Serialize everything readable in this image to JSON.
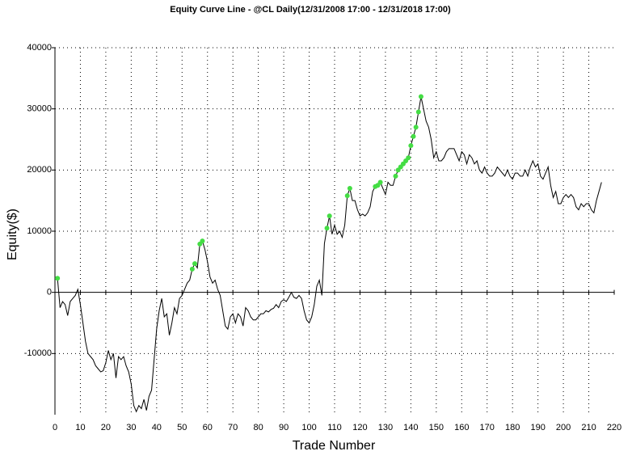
{
  "chart_data": {
    "type": "line",
    "title": "Equity Curve Line - @CL Daily(12/31/2008 17:00 - 12/31/2018 17:00)",
    "x_label": "Trade Number",
    "y_label": "Equity($)",
    "xlim": [
      0,
      220
    ],
    "xticks": [
      0,
      10,
      20,
      30,
      40,
      50,
      60,
      70,
      80,
      90,
      100,
      110,
      120,
      130,
      140,
      150,
      160,
      170,
      180,
      190,
      200,
      210,
      220
    ],
    "ylim": [
      -20000,
      40000
    ],
    "yticks": [
      -10000,
      0,
      10000,
      20000,
      30000,
      40000
    ],
    "grid": true,
    "series": [
      {
        "color": "#000000",
        "x": [
          1,
          2,
          3,
          4,
          5,
          6,
          7,
          8,
          9,
          10,
          11,
          12,
          13,
          14,
          15,
          16,
          17,
          18,
          19,
          20,
          21,
          22,
          23,
          24,
          25,
          26,
          27,
          28,
          29,
          30,
          31,
          32,
          33,
          34,
          35,
          36,
          37,
          38,
          39,
          40,
          41,
          42,
          43,
          44,
          45,
          46,
          47,
          48,
          49,
          50,
          51,
          52,
          53,
          54,
          55,
          56,
          57,
          58,
          59,
          60,
          61,
          62,
          63,
          64,
          65,
          66,
          67,
          68,
          69,
          70,
          71,
          72,
          73,
          74,
          75,
          76,
          77,
          78,
          79,
          80,
          81,
          82,
          83,
          84,
          85,
          86,
          87,
          88,
          89,
          90,
          91,
          92,
          93,
          94,
          95,
          96,
          97,
          98,
          99,
          100,
          101,
          102,
          103,
          104,
          105,
          106,
          107,
          108,
          109,
          110,
          111,
          112,
          113,
          114,
          115,
          116,
          117,
          118,
          119,
          120,
          121,
          122,
          123,
          124,
          125,
          126,
          127,
          128,
          129,
          130,
          131,
          132,
          133,
          134,
          135,
          136,
          137,
          138,
          139,
          140,
          141,
          142,
          143,
          144,
          145,
          146,
          147,
          148,
          149,
          150,
          151,
          152,
          153,
          154,
          155,
          156,
          157,
          158,
          159,
          160,
          161,
          162,
          163,
          164,
          165,
          166,
          167,
          168,
          169,
          170,
          171,
          172,
          173,
          174,
          175,
          176,
          177,
          178,
          179,
          180,
          181,
          182,
          183,
          184,
          185,
          186,
          187,
          188,
          189,
          190,
          191,
          192,
          193,
          194,
          195,
          196,
          197,
          198,
          199,
          200,
          201,
          202,
          203,
          204,
          205,
          206,
          207,
          208,
          209,
          210,
          211,
          212,
          213,
          214,
          215
        ],
        "values": [
          2300,
          -2500,
          -1500,
          -2000,
          -3800,
          -1500,
          -1000,
          -500,
          500,
          -2000,
          -5000,
          -8000,
          -10000,
          -10500,
          -11000,
          -12000,
          -12500,
          -13000,
          -12800,
          -11500,
          -9500,
          -11000,
          -10000,
          -14000,
          -10500,
          -11000,
          -10500,
          -12000,
          -13000,
          -15000,
          -18500,
          -19500,
          -18500,
          -19000,
          -17500,
          -19300,
          -17000,
          -16000,
          -11000,
          -6000,
          -3000,
          -1000,
          -4000,
          -3500,
          -7000,
          -5000,
          -2500,
          -3500,
          -1000,
          -500,
          500,
          1500,
          2000,
          3800,
          4700,
          4000,
          7900,
          8400,
          7000,
          5000,
          2500,
          1500,
          2000,
          500,
          -500,
          -3000,
          -5500,
          -6000,
          -4000,
          -3500,
          -5000,
          -3500,
          -4000,
          -5500,
          -2500,
          -3000,
          -4000,
          -4500,
          -4500,
          -4000,
          -3500,
          -3500,
          -3000,
          -3200,
          -2800,
          -2600,
          -2000,
          -2500,
          -1500,
          -1200,
          -1500,
          -800,
          0,
          -800,
          -1000,
          -500,
          -1000,
          -3000,
          -4500,
          -5000,
          -4000,
          -2000,
          1000,
          2000,
          -500,
          8000,
          10500,
          12500,
          9500,
          11000,
          9500,
          10000,
          9000,
          11000,
          15800,
          17000,
          15000,
          15000,
          13500,
          12500,
          12800,
          12500,
          13000,
          14000,
          16500,
          17300,
          17500,
          18000,
          17000,
          16000,
          18000,
          17500,
          17500,
          19000,
          20000,
          20500,
          21000,
          21500,
          22000,
          24000,
          25500,
          27000,
          29500,
          32000,
          30000,
          28000,
          27000,
          25000,
          22000,
          23000,
          21500,
          21500,
          22000,
          23000,
          23500,
          23500,
          23500,
          22500,
          21500,
          23000,
          22500,
          21000,
          22500,
          22000,
          21000,
          21500,
          20000,
          19500,
          20500,
          19500,
          19000,
          19000,
          19500,
          20500,
          20000,
          19500,
          19000,
          20000,
          19000,
          18500,
          19500,
          19500,
          19000,
          19000,
          20000,
          19000,
          20500,
          21500,
          20500,
          21000,
          19000,
          18500,
          19500,
          20500,
          17500,
          15500,
          16500,
          14500,
          14500,
          15500,
          16000,
          15500,
          16000,
          15500,
          14000,
          13500,
          14500,
          14000,
          14500,
          14500,
          13500,
          13000,
          15000,
          16500,
          18000
        ]
      },
      {
        "color": "#44dd44",
        "marker": "dot",
        "x": [
          1,
          54,
          55,
          57,
          58,
          107,
          108,
          115,
          116,
          126,
          127,
          128,
          134,
          135,
          136,
          137,
          138,
          139,
          140,
          141,
          142,
          143,
          144
        ],
        "values": [
          2300,
          3800,
          4700,
          7900,
          8400,
          10500,
          12500,
          15800,
          17000,
          17300,
          17500,
          18000,
          19000,
          20000,
          20500,
          21000,
          21500,
          22000,
          24000,
          25500,
          27000,
          29500,
          32000
        ]
      }
    ]
  }
}
